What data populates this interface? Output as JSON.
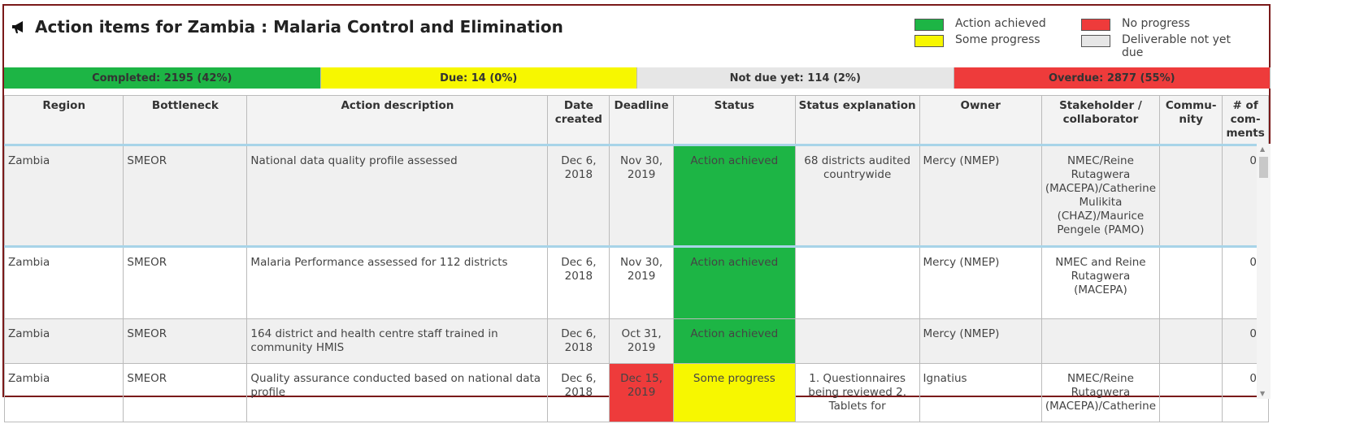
{
  "title": "Action items for Zambia : Malaria Control and Elimination",
  "legend": [
    {
      "label": "Action achieved",
      "color": "#1db545"
    },
    {
      "label": "Some progress",
      "color": "#f7f700"
    },
    {
      "label": "No progress",
      "color": "#ee3b3b"
    },
    {
      "label": "Deliverable not yet due",
      "color": "#e6e6e6"
    }
  ],
  "summary": [
    {
      "label": "Completed: 2195 (42%)",
      "color": "#1db545"
    },
    {
      "label": "Due: 14 (0%)",
      "color": "#f7f700"
    },
    {
      "label": "Not due yet: 114 (2%)",
      "color": "#e6e6e6"
    },
    {
      "label": "Overdue: 2877 (55%)",
      "color": "#ee3b3b"
    }
  ],
  "columns": [
    "Region",
    "Bottleneck",
    "Action description",
    "Date created",
    "Deadline",
    "Status",
    "Status explanation",
    "Owner",
    "Stakeholder / collaborator",
    "Commu-nity",
    "# of com-ments"
  ],
  "rows": [
    {
      "region": "Zambia",
      "bottleneck": "SMEOR",
      "description": "National data quality profile assessed",
      "created": "Dec 6, 2018",
      "deadline": "Nov 30, 2019",
      "deadline_color": "",
      "status": "Action achieved",
      "status_color": "#1db545",
      "explanation": "68 districts audited countrywide",
      "owner": "Mercy (NMEP)",
      "stakeholder": "NMEC/Reine Rutagwera (MACEPA)/Catherine Mulikita (CHAZ)/Maurice Pengele (PAMO)",
      "community": "",
      "comments": "0"
    },
    {
      "region": "Zambia",
      "bottleneck": "SMEOR",
      "description": "Malaria Performance assessed for 112 districts",
      "created": "Dec 6, 2018",
      "deadline": "Nov 30, 2019",
      "deadline_color": "",
      "status": "Action achieved",
      "status_color": "#1db545",
      "explanation": "",
      "owner": "Mercy (NMEP)",
      "stakeholder": "NMEC and Reine Rutagwera (MACEPA)",
      "community": "",
      "comments": "0"
    },
    {
      "region": "Zambia",
      "bottleneck": "SMEOR",
      "description": "164 district and health centre staff trained in community HMIS",
      "created": "Dec 6, 2018",
      "deadline": "Oct 31, 2019",
      "deadline_color": "",
      "status": "Action achieved",
      "status_color": "#1db545",
      "explanation": "",
      "owner": "Mercy (NMEP)",
      "stakeholder": "",
      "community": "",
      "comments": "0"
    },
    {
      "region": "Zambia",
      "bottleneck": "SMEOR",
      "description": "Quality assurance conducted based on national data profile",
      "created": "Dec 6, 2018",
      "deadline": "Dec 15, 2019",
      "deadline_color": "#ee3b3b",
      "status": "Some progress",
      "status_color": "#f7f700",
      "explanation": "1. Questionnaires being reviewed 2. Tablets for",
      "owner": "Ignatius",
      "stakeholder": "NMEC/Reine Rutagwera (MACEPA)/Catherine",
      "community": "",
      "comments": "0"
    }
  ]
}
